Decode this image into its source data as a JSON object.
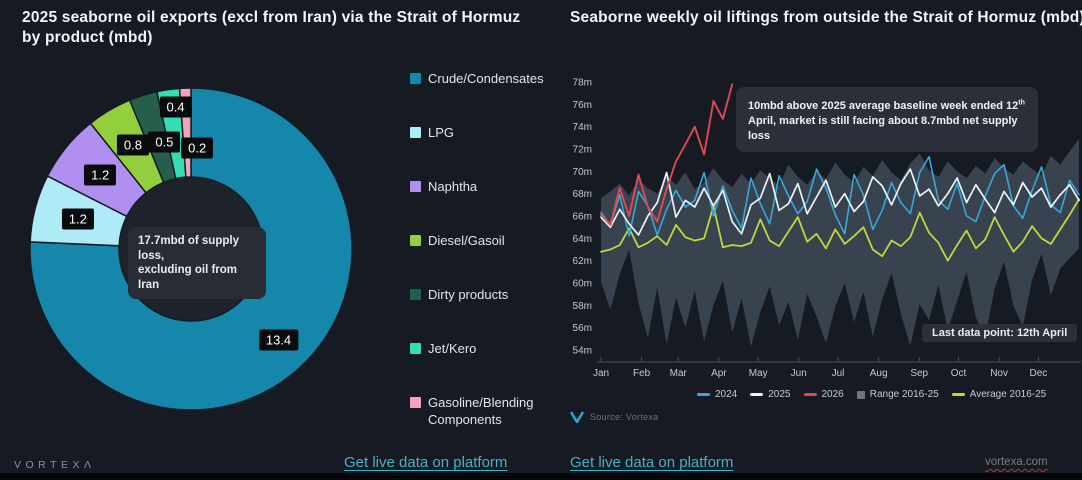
{
  "brand": {
    "wordmark": "VORTEXΛ",
    "website": "vortexa.com",
    "source_label": "Source: Vortexa"
  },
  "links": {
    "left_platform": "Get live data on platform",
    "right_platform": "Get live data on platform"
  },
  "left_chart": {
    "title": "2025 seaborne oil exports (excl from Iran) via the Strait of Hormuz by product (mbd)",
    "center_note": "17.7mbd of supply loss,\nexcluding oil from Iran"
  },
  "right_chart": {
    "title": "Seaborne weekly oil liftings from outside the Strait of Hormuz (mbd)",
    "annotation_line1_pre": "10mbd above 2025 average baseline week ended 12",
    "annotation_sup": "th",
    "annotation_line2": "April, market is still facing about 8.7mbd net supply loss",
    "last_point_badge": "Last data point: 12th April"
  },
  "chart_data": [
    {
      "type": "pie",
      "donut": true,
      "title": "2025 seaborne oil exports (excl from Iran) via the Strait of Hormuz by product (mbd)",
      "total": 17.7,
      "center_note": "17.7mbd of supply loss, excluding oil from Iran",
      "slices": [
        {
          "label": "Crude/Condensates",
          "value": 13.4,
          "color": "#1587ab"
        },
        {
          "label": "LPG",
          "value": 1.2,
          "color": "#aeebf7"
        },
        {
          "label": "Naphtha",
          "value": 1.2,
          "color": "#b18ff0"
        },
        {
          "label": "Diesel/Gasoil",
          "value": 0.8,
          "color": "#93ce3d"
        },
        {
          "label": "Dirty products",
          "value": 0.5,
          "color": "#255f4b"
        },
        {
          "label": "Jet/Kero",
          "value": 0.4,
          "color": "#35ddb2"
        },
        {
          "label": "Gasoline/Blending Components",
          "value": 0.2,
          "color": "#f5a3bb"
        }
      ]
    },
    {
      "type": "line",
      "title": "Seaborne weekly oil liftings from outside the Strait of Hormuz (mbd)",
      "x_unit": "week",
      "x_tick_labels": [
        "Jan",
        "Feb",
        "Mar",
        "Apr",
        "May",
        "Jun",
        "Jul",
        "Aug",
        "Sep",
        "Oct",
        "Nov",
        "Dec"
      ],
      "ylim": [
        54,
        78
      ],
      "y_tick_step": 2,
      "y_tick_suffix": "m",
      "grid": false,
      "legend_position": "bottom",
      "annotation": "10mbd above 2025 average baseline week ended 12th April, market is still facing about 8.7mbd net supply loss",
      "last_data_point": "12th April",
      "series": [
        {
          "name": "2024",
          "color": "#38a7da",
          "values": [
            66.3,
            65.2,
            67.9,
            64.2,
            68.2,
            66.9,
            64.3,
            66.6,
            68.3,
            66.8,
            67.4,
            69.9,
            66.0,
            68.7,
            66.5,
            64.9,
            69.4,
            67.1,
            65.3,
            69.6,
            67.8,
            66.2,
            67.3,
            70.2,
            68.5,
            66.1,
            64.4,
            69.7,
            67.9,
            64.8,
            66.5,
            69.0,
            67.2,
            66.2,
            69.9,
            71.3,
            67.4,
            66.6,
            68.9,
            66.0,
            65.5,
            67.8,
            69.8,
            70.6,
            66.9,
            65.8,
            68.3,
            70.4,
            67.0,
            66.3,
            69.2,
            67.9
          ]
        },
        {
          "name": "2025",
          "color": "#e9f6fa",
          "values": [
            65.9,
            65.0,
            66.6,
            65.3,
            64.3,
            66.0,
            67.2,
            69.9,
            65.9,
            67.4,
            66.8,
            68.5,
            66.9,
            68.3,
            65.5,
            64.4,
            67.0,
            67.6,
            69.8,
            66.5,
            67.1,
            68.9,
            66.2,
            67.7,
            69.2,
            66.8,
            68.0,
            66.4,
            67.3,
            69.5,
            68.7,
            67.0,
            68.9,
            70.2,
            67.8,
            68.4,
            66.9,
            68.0,
            69.4,
            67.2,
            68.8,
            67.5,
            66.3,
            68.2,
            67.0,
            69.0,
            67.7,
            68.5,
            66.8,
            67.9,
            68.8,
            67.4
          ]
        },
        {
          "name": "2026",
          "color": "#e2494d",
          "values": [
            66.1,
            65.2,
            68.5,
            66.0,
            69.7,
            66.8,
            65.5,
            68.4,
            70.9,
            72.4,
            74.0,
            71.5,
            76.3,
            74.7,
            77.8
          ]
        },
        {
          "name": "Average 2016-25",
          "color": "#bcd93c",
          "values": [
            62.8,
            63.0,
            63.4,
            64.9,
            63.2,
            63.6,
            64.2,
            63.4,
            65.2,
            64.1,
            63.8,
            64.0,
            66.9,
            63.2,
            63.4,
            63.3,
            63.6,
            65.7,
            63.8,
            63.3,
            64.6,
            65.9,
            63.7,
            64.4,
            63.1,
            64.8,
            63.5,
            64.2,
            65.0,
            63.0,
            62.4,
            63.8,
            63.3,
            64.1,
            66.3,
            64.5,
            63.6,
            62.0,
            63.4,
            64.7,
            63.1,
            63.9,
            65.9,
            64.3,
            62.8,
            63.7,
            65.1,
            64.0,
            63.5,
            64.8,
            66.1,
            67.5
          ]
        }
      ],
      "range_band": {
        "name": "Range 2016-25",
        "color": "#3d4554",
        "legend_swatch": "#6e7685",
        "upper": [
          67.6,
          68.2,
          68.9,
          67.8,
          69.3,
          68.5,
          68.0,
          69.6,
          68.8,
          69.9,
          68.4,
          69.0,
          70.3,
          69.2,
          68.6,
          69.8,
          68.9,
          70.1,
          69.4,
          68.7,
          70.6,
          69.5,
          68.8,
          70.0,
          69.3,
          70.8,
          69.7,
          69.0,
          70.4,
          69.6,
          71.0,
          69.9,
          69.2,
          70.7,
          71.6,
          70.1,
          69.5,
          70.9,
          70.0,
          69.4,
          70.5,
          69.8,
          71.2,
          70.3,
          69.7,
          70.9,
          70.2,
          69.6,
          71.4,
          70.6,
          71.8,
          72.9
        ],
        "lower": [
          60.1,
          57.6,
          60.8,
          63.0,
          58.2,
          55.1,
          59.6,
          54.5,
          58.7,
          56.0,
          59.3,
          54.8,
          58.0,
          60.2,
          55.6,
          58.6,
          54.3,
          57.4,
          59.7,
          56.2,
          58.3,
          54.9,
          59.0,
          57.0,
          54.6,
          57.9,
          60.0,
          56.5,
          59.2,
          55.2,
          58.5,
          60.9,
          57.2,
          54.4,
          58.1,
          56.7,
          59.8,
          55.8,
          58.4,
          61.0,
          56.9,
          55.3,
          59.5,
          61.9,
          58.0,
          56.1,
          60.3,
          62.6,
          58.9,
          61.3,
          62.2,
          63.1
        ]
      }
    }
  ]
}
